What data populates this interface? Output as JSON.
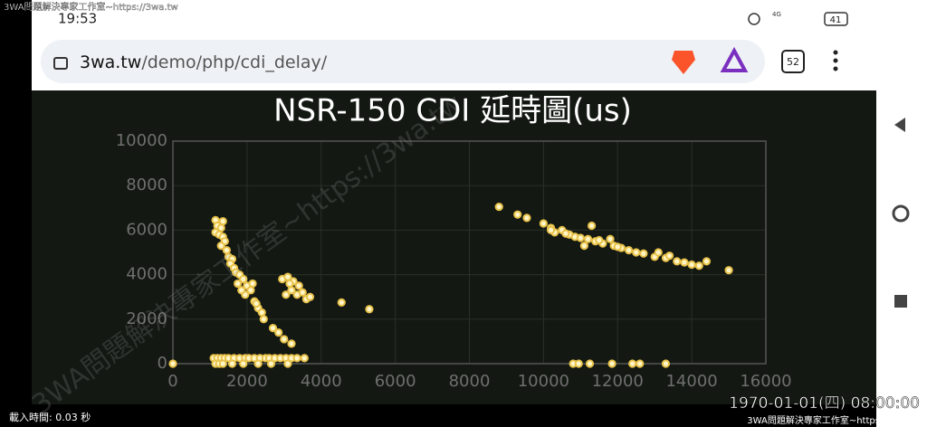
{
  "watermark": "3WA問題解決專家工作室~https://3wa.tw",
  "status": {
    "time": "19:53",
    "network": "4G",
    "battery": "41"
  },
  "browser": {
    "url_host": "3wa.tw",
    "url_path": "/demo/php/cdi_delay/",
    "tabs": "52"
  },
  "chart_data": {
    "type": "scatter",
    "title": "NSR-150 CDI 延時圖(us)",
    "xlim": [
      0,
      16000
    ],
    "xticks": [
      0,
      2000,
      4000,
      6000,
      8000,
      10000,
      12000,
      14000,
      16000
    ],
    "ylim": [
      0,
      10000
    ],
    "yticks": [
      0,
      2000,
      4000,
      6000,
      8000,
      10000
    ],
    "grid": true,
    "series": [
      {
        "color": "#e8c24a",
        "x": [
          0,
          1150,
          1350,
          1200,
          1300,
          1150,
          1250,
          1350,
          1400,
          1300,
          1450,
          1500,
          1600,
          1550,
          1650,
          1700,
          1800,
          1900,
          1750,
          2000,
          2100,
          1950,
          2200,
          2300,
          2400,
          2450,
          2700,
          2850,
          3000,
          3200,
          2250,
          2150,
          1850,
          2950,
          3100,
          3250,
          3400,
          3050,
          3200,
          3350,
          3500,
          3600,
          3700,
          3150,
          4550,
          5300,
          8800,
          9300,
          9550,
          10000,
          10200,
          10300,
          10500,
          10700,
          10850,
          11000,
          11100,
          11200,
          11300,
          11400,
          11600,
          11800,
          11900,
          12100,
          12300,
          12500,
          12700,
          13000,
          13100,
          13300,
          13600,
          13800,
          14000,
          14200,
          14400,
          15000,
          10200,
          10600,
          11500,
          12000,
          13400,
          10800,
          10950,
          11250,
          11850,
          12400,
          12600,
          13300,
          1100,
          1200,
          1300,
          1400,
          1500,
          1650,
          1800,
          1950,
          2050,
          2200,
          2350,
          2500,
          2600,
          2750,
          2900,
          3050,
          3200,
          3350,
          3550,
          1150,
          1250,
          1350,
          1600,
          1900,
          2300,
          2650,
          3100
        ],
        "values": [
          0,
          6450,
          6400,
          6200,
          6100,
          5900,
          5800,
          5700,
          5500,
          5300,
          5100,
          4800,
          4700,
          4500,
          4300,
          4100,
          4000,
          3800,
          3600,
          3500,
          3300,
          3100,
          2800,
          2500,
          2300,
          2000,
          1600,
          1400,
          1100,
          900,
          2700,
          3600,
          3300,
          3800,
          3900,
          3700,
          3500,
          3100,
          3300,
          3100,
          3200,
          2900,
          3000,
          3600,
          2750,
          2450,
          7050,
          6700,
          6550,
          6300,
          6100,
          5900,
          6000,
          5800,
          5700,
          5650,
          5300,
          5600,
          6200,
          5500,
          5400,
          5600,
          5300,
          5200,
          5100,
          5000,
          4950,
          4800,
          5000,
          4750,
          4600,
          4550,
          4450,
          4400,
          4600,
          4200,
          6000,
          5850,
          5550,
          5250,
          4850,
          0,
          0,
          0,
          0,
          0,
          0,
          0,
          250,
          250,
          250,
          250,
          250,
          250,
          250,
          250,
          250,
          250,
          250,
          250,
          250,
          250,
          250,
          250,
          250,
          250,
          250,
          0,
          0,
          0,
          0,
          0,
          0,
          0,
          0
        ]
      }
    ]
  },
  "footer": {
    "load_time": "載入時間: 0.03 秒",
    "datetime": "1970-01-01(四) 08:00:00"
  }
}
